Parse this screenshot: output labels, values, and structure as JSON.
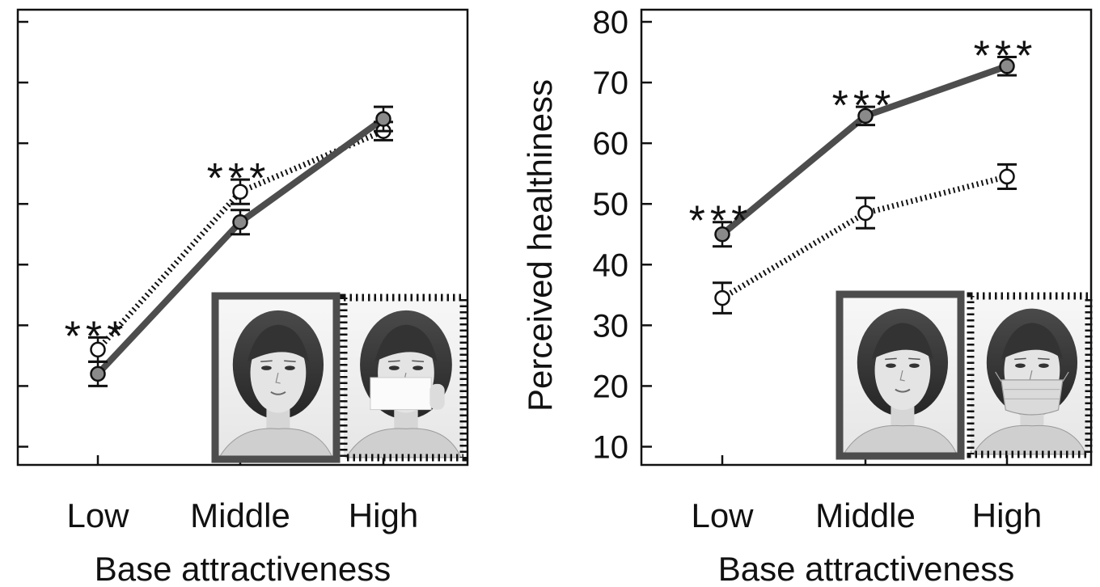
{
  "chart_data": [
    {
      "type": "line",
      "categories": [
        "Low",
        "Middle",
        "High"
      ],
      "xlabel": "Base attractiveness",
      "ylabel": "",
      "ylim": [
        7,
        82
      ],
      "yticks": [
        10,
        20,
        30,
        40,
        50,
        60,
        70,
        80
      ],
      "show_ytick_labels": false,
      "significance": [
        "***",
        "***",
        ""
      ],
      "series": [
        {
          "style": "solid",
          "marker": "filled-circle",
          "values": [
            22,
            47,
            64
          ],
          "errors": [
            2,
            2,
            2
          ]
        },
        {
          "style": "dotted",
          "marker": "open-circle",
          "values": [
            26,
            52,
            62
          ],
          "errors": [
            2,
            2,
            1.5
          ]
        }
      ],
      "inset_images": [
        "face-photo-solid-frame",
        "face-photo-card-covering-mouth-dotted-frame"
      ],
      "colors": {
        "solid": "#4d4d4d",
        "marker_fill": "#8a8a8a"
      }
    },
    {
      "type": "line",
      "categories": [
        "Low",
        "Middle",
        "High"
      ],
      "xlabel": "Base attractiveness",
      "ylabel": "Perceived healthiness",
      "ylim": [
        7,
        82
      ],
      "yticks": [
        10,
        20,
        30,
        40,
        50,
        60,
        70,
        80
      ],
      "ytick_labels": [
        "10",
        "20",
        "30",
        "40",
        "50",
        "60",
        "70",
        "80"
      ],
      "show_ytick_labels": true,
      "significance": [
        "***",
        "***",
        "***"
      ],
      "series": [
        {
          "style": "solid",
          "marker": "filled-circle",
          "values": [
            45,
            64.5,
            72.7
          ],
          "errors": [
            2,
            1.5,
            1.5
          ]
        },
        {
          "style": "dotted",
          "marker": "open-circle",
          "values": [
            34.5,
            48.5,
            54.5
          ],
          "errors": [
            2.5,
            2.5,
            2
          ]
        }
      ],
      "inset_images": [
        "face-photo-solid-frame",
        "face-photo-surgical-mask-dotted-frame"
      ],
      "colors": {
        "solid": "#4d4d4d",
        "marker_fill": "#8a8a8a"
      }
    }
  ]
}
